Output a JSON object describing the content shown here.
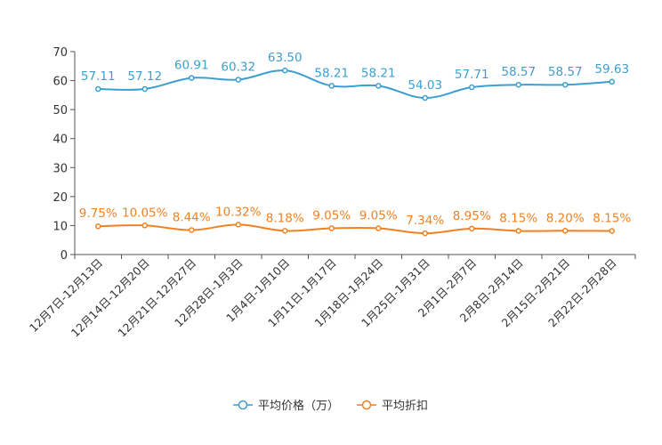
{
  "chart_data": {
    "type": "line",
    "title": "",
    "xlabel": "",
    "ylabel": "",
    "ylim": [
      0,
      70
    ],
    "yticks": [
      "0",
      "10",
      "20",
      "30",
      "40",
      "50",
      "60",
      "70"
    ],
    "categories": [
      "12月7日-12月13日",
      "12月14日-12月20日",
      "12月21日-12月27日",
      "12月28日-1月3日",
      "1月4日-1月10日",
      "1月11日-1月17日",
      "1月18日-1月24日",
      "1月25日-1月31日",
      "2月1日-2月7日",
      "2月8日-2月14日",
      "2月15日-2月21日",
      "2月22日-2月28日"
    ],
    "series": [
      {
        "name": "平均价格（万）",
        "color": "#3d9fd0",
        "values": [
          57.11,
          57.12,
          60.91,
          60.32,
          63.5,
          58.21,
          58.21,
          54.03,
          57.71,
          58.57,
          58.57,
          59.63
        ],
        "labels": [
          "57.11",
          "57.12",
          "60.91",
          "60.32",
          "63.50",
          "58.21",
          "58.21",
          "54.03",
          "57.71",
          "58.57",
          "58.57",
          "59.63"
        ]
      },
      {
        "name": "平均折扣",
        "color": "#f28122",
        "values": [
          9.75,
          10.05,
          8.44,
          10.32,
          8.18,
          9.05,
          9.05,
          7.34,
          8.95,
          8.15,
          8.2,
          8.15
        ],
        "labels": [
          "9.75%",
          "10.05%",
          "8.44%",
          "10.32%",
          "8.18%",
          "9.05%",
          "9.05%",
          "7.34%",
          "8.95%",
          "8.15%",
          "8.20%",
          "8.15%"
        ]
      }
    ],
    "legend_position": "bottom-center",
    "grid": false
  }
}
